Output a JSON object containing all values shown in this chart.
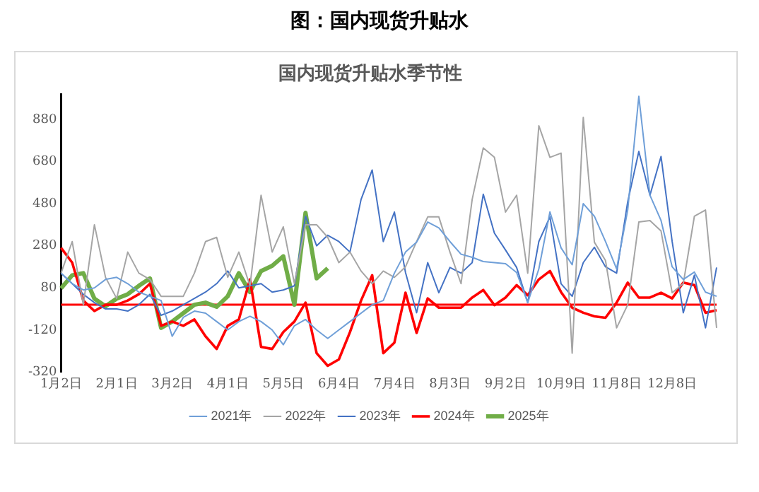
{
  "chart_data": {
    "type": "line",
    "title": "图：国内现货升贴水",
    "subtitle": "国内现货升贴水季节性",
    "categories": [
      "1月2日",
      null,
      null,
      null,
      null,
      "2月1日",
      null,
      null,
      null,
      null,
      "3月2日",
      null,
      null,
      null,
      null,
      "4月1日",
      null,
      null,
      null,
      null,
      "5月5日",
      null,
      null,
      null,
      null,
      "6月4日",
      null,
      null,
      null,
      null,
      "7月4日",
      null,
      null,
      null,
      null,
      "8月3日",
      null,
      null,
      null,
      null,
      "9月2日",
      null,
      null,
      null,
      null,
      "10月9日",
      null,
      null,
      null,
      null,
      "11月8日",
      null,
      null,
      null,
      null,
      "12月8日",
      null,
      null,
      null,
      null
    ],
    "ylim": [
      -320,
      1000
    ],
    "yticks": [
      -320,
      -120,
      80,
      280,
      480,
      680,
      880
    ],
    "grid": false,
    "legend": "bottom",
    "marker": "none",
    "line_style": "solid",
    "ref_lines": [
      {
        "axis": "y",
        "value": 0,
        "color": "#ff0000"
      }
    ],
    "series": [
      {
        "name": "2021年",
        "color": "#6f9fd8",
        "values": [
          150,
          100,
          70,
          80,
          120,
          130,
          100,
          60,
          40,
          20,
          -150,
          -60,
          -30,
          -40,
          -80,
          -120,
          -80,
          -55,
          -80,
          -120,
          -190,
          -100,
          -70,
          -120,
          -160,
          -120,
          -80,
          -40,
          0,
          20,
          150,
          250,
          297,
          393,
          365,
          300,
          240,
          225,
          205,
          200,
          195,
          153,
          10,
          170,
          441,
          270,
          190,
          480,
          420,
          300,
          170,
          450,
          990,
          520,
          400,
          180,
          120,
          155,
          60,
          40
        ]
      },
      {
        "name": "2022年",
        "color": "#a5a5a5",
        "values": [
          150,
          300,
          0,
          380,
          130,
          30,
          250,
          150,
          120,
          40,
          40,
          40,
          150,
          300,
          320,
          130,
          250,
          90,
          520,
          250,
          370,
          100,
          380,
          380,
          320,
          200,
          250,
          160,
          100,
          160,
          130,
          180,
          300,
          417,
          417,
          250,
          100,
          500,
          745,
          700,
          440,
          520,
          150,
          850,
          700,
          720,
          -230,
          890,
          297,
          210,
          -110,
          0,
          393,
          400,
          350,
          57,
          100,
          420,
          450,
          -110
        ]
      },
      {
        "name": "2023年",
        "color": "#4472c4",
        "values": [
          150,
          100,
          50,
          10,
          -20,
          -20,
          -30,
          0,
          50,
          -50,
          -30,
          0,
          30,
          60,
          100,
          160,
          80,
          90,
          100,
          60,
          70,
          90,
          420,
          280,
          330,
          300,
          250,
          500,
          640,
          300,
          440,
          153,
          -38,
          200,
          57,
          177,
          150,
          200,
          525,
          340,
          260,
          177,
          10,
          300,
          417,
          100,
          40,
          200,
          273,
          180,
          150,
          489,
          728,
          520,
          704,
          300,
          -38,
          140,
          -110,
          177
        ]
      },
      {
        "name": "2024年",
        "color": "#ff0000",
        "values": [
          270,
          200,
          20,
          -30,
          0,
          0,
          20,
          50,
          100,
          -100,
          -80,
          -100,
          -70,
          -150,
          -210,
          -100,
          -70,
          120,
          -200,
          -210,
          -130,
          -80,
          10,
          -230,
          -290,
          -260,
          -130,
          20,
          140,
          -230,
          -180,
          57,
          -134,
          30,
          -14,
          -14,
          -14,
          34,
          70,
          -2,
          34,
          93,
          45,
          120,
          160,
          60,
          -14,
          -38,
          -55,
          -62,
          10,
          105,
          34,
          34,
          57,
          30,
          105,
          93,
          -38,
          -26
        ]
      },
      {
        "name": "2025年",
        "color": "#70ad47",
        "values": [
          78,
          140,
          150,
          29,
          -7,
          29,
          50,
          90,
          125,
          -110,
          -80,
          -40,
          0,
          10,
          -10,
          40,
          150,
          60,
          160,
          185,
          230,
          0,
          437,
          125,
          173,
          null,
          null,
          null,
          null,
          null,
          null,
          null,
          null,
          null,
          null,
          null,
          null,
          null,
          null,
          null,
          null,
          null,
          null,
          null,
          null,
          null,
          null,
          null,
          null,
          null,
          null,
          null,
          null,
          null,
          null,
          null,
          null,
          null,
          null,
          null
        ]
      }
    ]
  }
}
